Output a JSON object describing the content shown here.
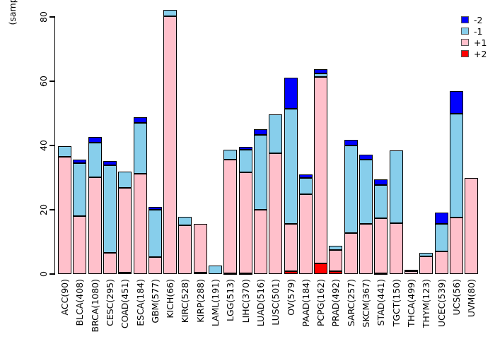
{
  "chart_data": {
    "type": "bar",
    "stacked": true,
    "ylabel": "(sample %)",
    "ylim": [
      0,
      80
    ],
    "yticks": [
      0,
      20,
      40,
      60,
      80
    ],
    "grid": false,
    "legend_position": "top-right",
    "legend_labels": [
      "-2",
      "-1",
      "+1",
      "+2"
    ],
    "bar_border_color": "#000000",
    "background_color": "#ffffff",
    "categories": [
      "ACC(90)",
      "BLCA(408)",
      "BRCA(1080)",
      "CESC(295)",
      "COAD(451)",
      "ESCA(184)",
      "GBM(577)",
      "KICH(66)",
      "KIRC(528)",
      "KIRP(288)",
      "LAML(191)",
      "LGG(513)",
      "LIHC(370)",
      "LUAD(516)",
      "LUSC(501)",
      "OV(579)",
      "PAAD(184)",
      "PCPG(162)",
      "PRAD(492)",
      "SARC(257)",
      "SKCM(367)",
      "STAD(441)",
      "TGCT(150)",
      "THCA(499)",
      "THYM(123)",
      "UCEC(539)",
      "UCS(56)",
      "UVM(80)"
    ],
    "series": [
      {
        "name": "+2",
        "color": "#FF0000",
        "values": [
          0,
          0,
          0,
          0,
          0.4,
          0,
          0,
          0,
          0,
          0.4,
          0,
          0.2,
          0.3,
          0,
          0,
          0.9,
          0,
          3.4,
          0.8,
          0,
          0,
          0.3,
          0,
          0,
          0,
          0,
          0,
          0
        ]
      },
      {
        "name": "+1",
        "color": "#FFC0CB",
        "values": [
          36.4,
          18.1,
          30.2,
          6.7,
          26.5,
          31.3,
          5.2,
          80.3,
          15.1,
          15.1,
          0,
          35.5,
          31.4,
          19.9,
          37.5,
          14.7,
          24.8,
          58.0,
          6.6,
          12.7,
          15.5,
          17.0,
          15.9,
          0.8,
          5.6,
          7.1,
          17.6,
          29.8
        ]
      },
      {
        "name": "-1",
        "color": "#87CEEB",
        "values": [
          3.3,
          16.5,
          10.6,
          27.2,
          5.0,
          15.8,
          14.9,
          2.0,
          2.7,
          0,
          2.6,
          2.9,
          6.9,
          23.5,
          12.2,
          35.9,
          5.0,
          1.1,
          1.3,
          27.4,
          20.2,
          10.3,
          22.5,
          0.5,
          1.0,
          8.5,
          32.3,
          0
        ]
      },
      {
        "name": "-2",
        "color": "#0000FF",
        "values": [
          0,
          1.1,
          1.9,
          1.2,
          0,
          1.8,
          0.7,
          0,
          0,
          0,
          0,
          0,
          0.9,
          1.6,
          0,
          9.5,
          1.1,
          1.3,
          0,
          1.7,
          1.5,
          1.9,
          0,
          0,
          0,
          3.5,
          7.1,
          0
        ]
      }
    ],
    "stack_order_bottom_to_top": [
      "+2",
      "+1",
      "-1",
      "-2"
    ]
  }
}
